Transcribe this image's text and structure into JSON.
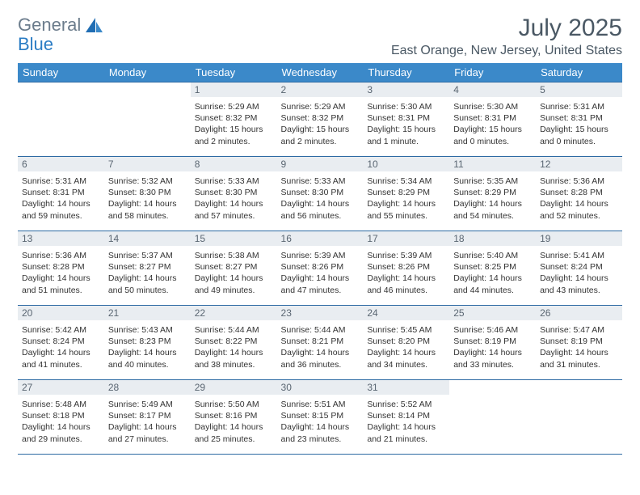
{
  "brand": {
    "part1": "General",
    "part2": "Blue"
  },
  "title": "July 2025",
  "location": "East Orange, New Jersey, United States",
  "weekdays": [
    "Sunday",
    "Monday",
    "Tuesday",
    "Wednesday",
    "Thursday",
    "Friday",
    "Saturday"
  ],
  "colors": {
    "header_bg": "#3b89c9",
    "row_border": "#2d6aa3",
    "daynum_bg": "#e9edf1",
    "title_color": "#4a5864",
    "logo_gray": "#6b7c8c",
    "logo_blue": "#2a7cc4",
    "text": "#333333"
  },
  "weeks": [
    [
      {
        "day": "",
        "sunrise": "",
        "sunset": "",
        "daylight1": "",
        "daylight2": "",
        "empty": true
      },
      {
        "day": "",
        "sunrise": "",
        "sunset": "",
        "daylight1": "",
        "daylight2": "",
        "empty": true
      },
      {
        "day": "1",
        "sunrise": "Sunrise: 5:29 AM",
        "sunset": "Sunset: 8:32 PM",
        "daylight1": "Daylight: 15 hours",
        "daylight2": "and 2 minutes."
      },
      {
        "day": "2",
        "sunrise": "Sunrise: 5:29 AM",
        "sunset": "Sunset: 8:32 PM",
        "daylight1": "Daylight: 15 hours",
        "daylight2": "and 2 minutes."
      },
      {
        "day": "3",
        "sunrise": "Sunrise: 5:30 AM",
        "sunset": "Sunset: 8:31 PM",
        "daylight1": "Daylight: 15 hours",
        "daylight2": "and 1 minute."
      },
      {
        "day": "4",
        "sunrise": "Sunrise: 5:30 AM",
        "sunset": "Sunset: 8:31 PM",
        "daylight1": "Daylight: 15 hours",
        "daylight2": "and 0 minutes."
      },
      {
        "day": "5",
        "sunrise": "Sunrise: 5:31 AM",
        "sunset": "Sunset: 8:31 PM",
        "daylight1": "Daylight: 15 hours",
        "daylight2": "and 0 minutes."
      }
    ],
    [
      {
        "day": "6",
        "sunrise": "Sunrise: 5:31 AM",
        "sunset": "Sunset: 8:31 PM",
        "daylight1": "Daylight: 14 hours",
        "daylight2": "and 59 minutes."
      },
      {
        "day": "7",
        "sunrise": "Sunrise: 5:32 AM",
        "sunset": "Sunset: 8:30 PM",
        "daylight1": "Daylight: 14 hours",
        "daylight2": "and 58 minutes."
      },
      {
        "day": "8",
        "sunrise": "Sunrise: 5:33 AM",
        "sunset": "Sunset: 8:30 PM",
        "daylight1": "Daylight: 14 hours",
        "daylight2": "and 57 minutes."
      },
      {
        "day": "9",
        "sunrise": "Sunrise: 5:33 AM",
        "sunset": "Sunset: 8:30 PM",
        "daylight1": "Daylight: 14 hours",
        "daylight2": "and 56 minutes."
      },
      {
        "day": "10",
        "sunrise": "Sunrise: 5:34 AM",
        "sunset": "Sunset: 8:29 PM",
        "daylight1": "Daylight: 14 hours",
        "daylight2": "and 55 minutes."
      },
      {
        "day": "11",
        "sunrise": "Sunrise: 5:35 AM",
        "sunset": "Sunset: 8:29 PM",
        "daylight1": "Daylight: 14 hours",
        "daylight2": "and 54 minutes."
      },
      {
        "day": "12",
        "sunrise": "Sunrise: 5:36 AM",
        "sunset": "Sunset: 8:28 PM",
        "daylight1": "Daylight: 14 hours",
        "daylight2": "and 52 minutes."
      }
    ],
    [
      {
        "day": "13",
        "sunrise": "Sunrise: 5:36 AM",
        "sunset": "Sunset: 8:28 PM",
        "daylight1": "Daylight: 14 hours",
        "daylight2": "and 51 minutes."
      },
      {
        "day": "14",
        "sunrise": "Sunrise: 5:37 AM",
        "sunset": "Sunset: 8:27 PM",
        "daylight1": "Daylight: 14 hours",
        "daylight2": "and 50 minutes."
      },
      {
        "day": "15",
        "sunrise": "Sunrise: 5:38 AM",
        "sunset": "Sunset: 8:27 PM",
        "daylight1": "Daylight: 14 hours",
        "daylight2": "and 49 minutes."
      },
      {
        "day": "16",
        "sunrise": "Sunrise: 5:39 AM",
        "sunset": "Sunset: 8:26 PM",
        "daylight1": "Daylight: 14 hours",
        "daylight2": "and 47 minutes."
      },
      {
        "day": "17",
        "sunrise": "Sunrise: 5:39 AM",
        "sunset": "Sunset: 8:26 PM",
        "daylight1": "Daylight: 14 hours",
        "daylight2": "and 46 minutes."
      },
      {
        "day": "18",
        "sunrise": "Sunrise: 5:40 AM",
        "sunset": "Sunset: 8:25 PM",
        "daylight1": "Daylight: 14 hours",
        "daylight2": "and 44 minutes."
      },
      {
        "day": "19",
        "sunrise": "Sunrise: 5:41 AM",
        "sunset": "Sunset: 8:24 PM",
        "daylight1": "Daylight: 14 hours",
        "daylight2": "and 43 minutes."
      }
    ],
    [
      {
        "day": "20",
        "sunrise": "Sunrise: 5:42 AM",
        "sunset": "Sunset: 8:24 PM",
        "daylight1": "Daylight: 14 hours",
        "daylight2": "and 41 minutes."
      },
      {
        "day": "21",
        "sunrise": "Sunrise: 5:43 AM",
        "sunset": "Sunset: 8:23 PM",
        "daylight1": "Daylight: 14 hours",
        "daylight2": "and 40 minutes."
      },
      {
        "day": "22",
        "sunrise": "Sunrise: 5:44 AM",
        "sunset": "Sunset: 8:22 PM",
        "daylight1": "Daylight: 14 hours",
        "daylight2": "and 38 minutes."
      },
      {
        "day": "23",
        "sunrise": "Sunrise: 5:44 AM",
        "sunset": "Sunset: 8:21 PM",
        "daylight1": "Daylight: 14 hours",
        "daylight2": "and 36 minutes."
      },
      {
        "day": "24",
        "sunrise": "Sunrise: 5:45 AM",
        "sunset": "Sunset: 8:20 PM",
        "daylight1": "Daylight: 14 hours",
        "daylight2": "and 34 minutes."
      },
      {
        "day": "25",
        "sunrise": "Sunrise: 5:46 AM",
        "sunset": "Sunset: 8:19 PM",
        "daylight1": "Daylight: 14 hours",
        "daylight2": "and 33 minutes."
      },
      {
        "day": "26",
        "sunrise": "Sunrise: 5:47 AM",
        "sunset": "Sunset: 8:19 PM",
        "daylight1": "Daylight: 14 hours",
        "daylight2": "and 31 minutes."
      }
    ],
    [
      {
        "day": "27",
        "sunrise": "Sunrise: 5:48 AM",
        "sunset": "Sunset: 8:18 PM",
        "daylight1": "Daylight: 14 hours",
        "daylight2": "and 29 minutes."
      },
      {
        "day": "28",
        "sunrise": "Sunrise: 5:49 AM",
        "sunset": "Sunset: 8:17 PM",
        "daylight1": "Daylight: 14 hours",
        "daylight2": "and 27 minutes."
      },
      {
        "day": "29",
        "sunrise": "Sunrise: 5:50 AM",
        "sunset": "Sunset: 8:16 PM",
        "daylight1": "Daylight: 14 hours",
        "daylight2": "and 25 minutes."
      },
      {
        "day": "30",
        "sunrise": "Sunrise: 5:51 AM",
        "sunset": "Sunset: 8:15 PM",
        "daylight1": "Daylight: 14 hours",
        "daylight2": "and 23 minutes."
      },
      {
        "day": "31",
        "sunrise": "Sunrise: 5:52 AM",
        "sunset": "Sunset: 8:14 PM",
        "daylight1": "Daylight: 14 hours",
        "daylight2": "and 21 minutes."
      },
      {
        "day": "",
        "sunrise": "",
        "sunset": "",
        "daylight1": "",
        "daylight2": "",
        "empty": true
      },
      {
        "day": "",
        "sunrise": "",
        "sunset": "",
        "daylight1": "",
        "daylight2": "",
        "empty": true
      }
    ]
  ]
}
